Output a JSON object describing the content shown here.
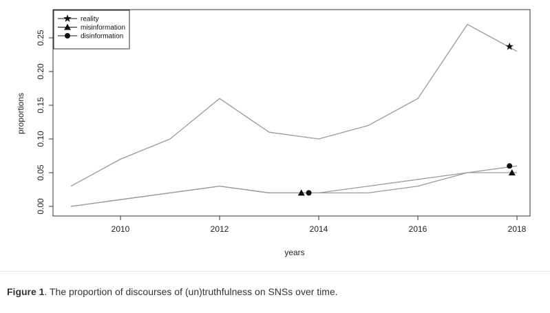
{
  "chart_data": {
    "type": "line",
    "title": "",
    "xlabel": "years",
    "ylabel": "proportions",
    "xlim": [
      2009,
      2018.2
    ],
    "ylim": [
      0,
      0.27
    ],
    "x_ticks": [
      "2010",
      "2012",
      "2014",
      "2016",
      "2018"
    ],
    "y_ticks": [
      "0.00",
      "0.05",
      "0.10",
      "0.15",
      "0.20",
      "0.25"
    ],
    "x": [
      2009,
      2010,
      2011,
      2012,
      2013,
      2014,
      2015,
      2016,
      2017,
      2018
    ],
    "series": [
      {
        "name": "reality",
        "marker": "star",
        "values": [
          0.03,
          0.07,
          0.1,
          0.16,
          0.11,
          0.1,
          0.12,
          0.16,
          0.27,
          0.23
        ],
        "marker_points": [
          [
            2017.85,
            0.237
          ]
        ]
      },
      {
        "name": "misinformation",
        "marker": "triangle",
        "values": [
          0.0,
          0.01,
          0.02,
          0.03,
          0.02,
          0.02,
          0.03,
          0.04,
          0.05,
          0.05
        ],
        "marker_points": [
          [
            2013.65,
            0.02
          ],
          [
            2017.9,
            0.05
          ]
        ]
      },
      {
        "name": "disinformation",
        "marker": "circle",
        "values": [
          0.0,
          0.01,
          0.02,
          0.03,
          0.02,
          0.02,
          0.02,
          0.03,
          0.05,
          0.06
        ],
        "marker_points": [
          [
            2013.8,
            0.02
          ],
          [
            2017.85,
            0.06
          ]
        ]
      }
    ],
    "legend_position": "top-left",
    "line_color": "#9a9a9a"
  },
  "caption": {
    "label": "Figure 1",
    "text": ". The proportion of discourses of (un)truthfulness on SNSs over time."
  }
}
